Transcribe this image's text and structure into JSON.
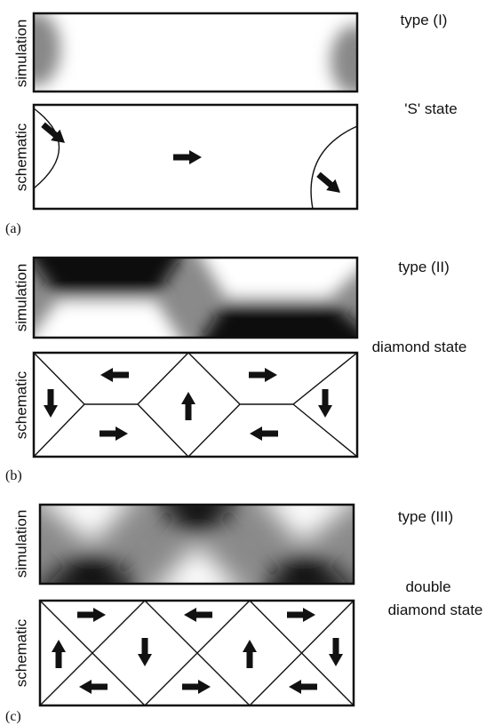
{
  "panels": [
    {
      "label": "(a)",
      "simulation": "simulation",
      "schematic": "schematic",
      "type": "type (I)",
      "state": [
        "'S' state"
      ]
    },
    {
      "label": "(b)",
      "simulation": "simulation",
      "schematic": "schematic",
      "type": "type (II)",
      "state": [
        "diamond state"
      ]
    },
    {
      "label": "(c)",
      "simulation": "simulation",
      "schematic": "schematic",
      "type": "type (III)",
      "state": [
        "double",
        "diamond state"
      ]
    }
  ]
}
